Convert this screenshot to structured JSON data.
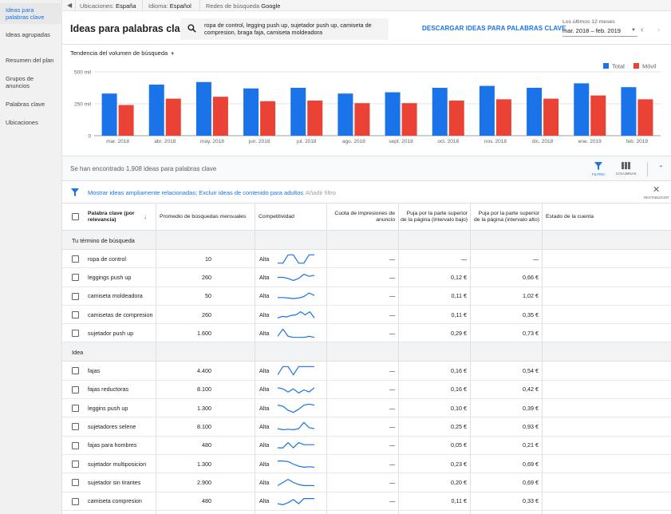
{
  "topbar": {
    "locations_label": "Ubicaciones:",
    "locations_value": "España",
    "language_label": "Idioma:",
    "language_value": "Español",
    "networks_label": "Redes de búsqueda",
    "networks_value": "Google"
  },
  "sidebar": {
    "items": [
      {
        "label": "Ideas para palabras clave",
        "active": true
      },
      {
        "label": "Ideas agrupadas",
        "active": false
      },
      {
        "label": "Resumen del plan",
        "active": false
      },
      {
        "label": "Grupos de anuncios",
        "active": false
      },
      {
        "label": "Palabras clave",
        "active": false
      },
      {
        "label": "Ubicaciones",
        "active": false
      }
    ]
  },
  "header": {
    "title": "Ideas para palabras clave",
    "search_text": "ropa de control, legging push up, sujetador push up, camiseta de compresion, braga faja, camiseta moldeadora",
    "download_label": "DESCARGAR IDEAS PARA PALABRAS CLAVE",
    "period_label": "Los últimos 12 meses",
    "period_value": "mar. 2018 – feb. 2019"
  },
  "chart_control": {
    "label": "Tendencia del volumen de búsqueda"
  },
  "chart_data": {
    "type": "bar",
    "categories": [
      "mar. 2018",
      "abr. 2018",
      "may. 2018",
      "jun. 2018",
      "jul. 2018",
      "ago. 2018",
      "sept. 2018",
      "oct. 2018",
      "nov. 2018",
      "dic. 2018",
      "ene. 2019",
      "feb. 2019"
    ],
    "series": [
      {
        "name": "Total",
        "color": "#1a73e8",
        "values": [
          330000,
          400000,
          420000,
          370000,
          375000,
          330000,
          340000,
          375000,
          390000,
          375000,
          410000,
          380000
        ]
      },
      {
        "name": "Móvil",
        "color": "#ea4335",
        "values": [
          240000,
          290000,
          305000,
          270000,
          275000,
          255000,
          255000,
          275000,
          285000,
          290000,
          315000,
          285000
        ]
      }
    ],
    "yticks": [
      {
        "value": 0,
        "label": "0"
      },
      {
        "value": 250000,
        "label": "250 mil"
      },
      {
        "value": 500000,
        "label": "500 mil"
      }
    ],
    "ylim": [
      0,
      500000
    ],
    "grid": true,
    "legend_position": "top-right"
  },
  "summary": {
    "found_text": "Se han encontrado 1.908 ideas para palabras clave",
    "filter_label": "FILTRO",
    "columns_label": "COLUMNAS"
  },
  "filter_bar": {
    "active_filter": "Mostrar ideas ampliamente relacionadas; Excluir ideas de contenido para adultos",
    "add_filter": "Añadir filtro",
    "reset_label": "RESTABLECER"
  },
  "table": {
    "headers": {
      "keyword": "Palabra clave (por relevancia)",
      "avg": "Promedio de búsquedas mensuales",
      "competition": "Competitividad",
      "impression_share": "Cuota de impresiones de anuncio",
      "bid_low": "Puja por la parte superior de la página (intervalo bajo)",
      "bid_high": "Puja por la parte superior de la página (intervalo alto)",
      "account_status": "Estado de la cuenta"
    },
    "groups": [
      {
        "label": "Tu término de búsqueda",
        "rows": [
          {
            "keyword": "ropa de control",
            "avg": "10",
            "competition": "Alta",
            "share": "—",
            "low": "—",
            "high": "—",
            "trend": [
              0.1,
              0.1,
              0.9,
              0.9,
              0.1,
              0.1,
              0.9,
              0.9
            ]
          },
          {
            "keyword": "leggings push up",
            "avg": "260",
            "competition": "Alta",
            "share": "—",
            "low": "0,12 €",
            "high": "0,66 €",
            "trend": [
              0.5,
              0.5,
              0.4,
              0.2,
              0.4,
              0.8,
              0.6,
              0.7
            ]
          },
          {
            "keyword": "camiseta moldeadora",
            "avg": "50",
            "competition": "Alta",
            "share": "—",
            "low": "0,11 €",
            "high": "1,02 €",
            "trend": [
              0.4,
              0.4,
              0.35,
              0.3,
              0.35,
              0.5,
              0.85,
              0.6
            ]
          },
          {
            "keyword": "camisetas de compresion",
            "avg": "260",
            "competition": "Alta",
            "share": "—",
            "low": "0,11 €",
            "high": "0,35 €",
            "trend": [
              0.2,
              0.35,
              0.3,
              0.45,
              0.5,
              0.8,
              0.5,
              0.8,
              0.2
            ]
          },
          {
            "keyword": "sujetador push up",
            "avg": "1.600",
            "competition": "Alta",
            "share": "—",
            "low": "0,29 €",
            "high": "0,73 €",
            "trend": [
              0.2,
              0.9,
              0.2,
              0.1,
              0.1,
              0.1,
              0.2,
              0.1
            ]
          }
        ]
      },
      {
        "label": "Idea",
        "rows": [
          {
            "keyword": "fajas",
            "avg": "4.400",
            "competition": "Alta",
            "share": "—",
            "low": "0,16 €",
            "high": "0,54 €",
            "trend": [
              0.1,
              0.9,
              0.9,
              0.1,
              0.9,
              0.9,
              0.9,
              0.9
            ]
          },
          {
            "keyword": "fajas reductoras",
            "avg": "8.100",
            "competition": "Alta",
            "share": "—",
            "low": "0,16 €",
            "high": "0,42 €",
            "trend": [
              0.7,
              0.6,
              0.3,
              0.6,
              0.2,
              0.5,
              0.3,
              0.7
            ]
          },
          {
            "keyword": "leggins push up",
            "avg": "1.300",
            "competition": "Alta",
            "share": "—",
            "low": "0,10 €",
            "high": "0,39 €",
            "trend": [
              0.8,
              0.7,
              0.3,
              0.1,
              0.4,
              0.8,
              0.9,
              0.8
            ]
          },
          {
            "keyword": "sujetadores selene",
            "avg": "8.100",
            "competition": "Alta",
            "share": "—",
            "low": "0,25 €",
            "high": "0,93 €",
            "trend": [
              0.3,
              0.2,
              0.25,
              0.2,
              0.3,
              0.9,
              0.4,
              0.3
            ]
          },
          {
            "keyword": "fajas para hombres",
            "avg": "480",
            "competition": "Alta",
            "share": "—",
            "low": "0,05 €",
            "high": "0,21 €",
            "trend": [
              0.3,
              0.3,
              0.8,
              0.3,
              0.8,
              0.6,
              0.6,
              0.6
            ]
          },
          {
            "keyword": "sujetador multiposicion",
            "avg": "1.300",
            "competition": "Alta",
            "share": "—",
            "low": "0,23 €",
            "high": "0,69 €",
            "trend": [
              0.8,
              0.8,
              0.75,
              0.5,
              0.3,
              0.2,
              0.25,
              0.2
            ]
          },
          {
            "keyword": "sujetador sin tirantes",
            "avg": "2.900",
            "competition": "Alta",
            "share": "—",
            "low": "0,20 €",
            "high": "0,69 €",
            "trend": [
              0.2,
              0.5,
              0.8,
              0.5,
              0.3,
              0.2,
              0.2,
              0.2
            ]
          },
          {
            "keyword": "camiseta compresion",
            "avg": "480",
            "competition": "Alta",
            "share": "—",
            "low": "0,11 €",
            "high": "0,33 €",
            "trend": [
              0.3,
              0.2,
              0.4,
              0.7,
              0.3,
              0.8,
              0.8,
              0.8
            ]
          }
        ]
      }
    ]
  },
  "colors": {
    "accent": "#1a73e8",
    "mobile": "#ea4335",
    "sparkline": "#1a73e8"
  }
}
